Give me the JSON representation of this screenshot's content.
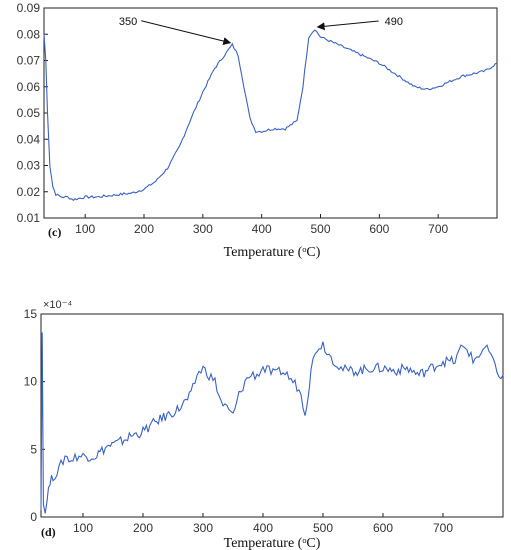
{
  "chart_data": [
    {
      "type": "line",
      "panel_label": "(c)",
      "xlabel": "Temperature (ᵒC)",
      "ylabel": "",
      "xlim": [
        30,
        800
      ],
      "ylim": [
        0.01,
        0.09
      ],
      "xticks": [
        100,
        200,
        300,
        400,
        500,
        600,
        700
      ],
      "yticks": [
        "0.01",
        "0.02",
        "0.03",
        "0.04",
        "0.05",
        "0.06",
        "0.07",
        "0.08",
        "0.09"
      ],
      "grid": false,
      "color": "#3a62c4",
      "series": [
        {
          "x": [
            30,
            33,
            36,
            40,
            45,
            50,
            60,
            70,
            80,
            100,
            120,
            140,
            160,
            180,
            200,
            220,
            240,
            260,
            280,
            300,
            320,
            340,
            350,
            360,
            370,
            380,
            390,
            400,
            420,
            440,
            460,
            470,
            480,
            490,
            500,
            520,
            540,
            560,
            580,
            600,
            620,
            640,
            660,
            680,
            700,
            720,
            740,
            760,
            780,
            800
          ],
          "y": [
            0.08,
            0.07,
            0.05,
            0.03,
            0.022,
            0.019,
            0.018,
            0.018,
            0.017,
            0.018,
            0.018,
            0.0185,
            0.019,
            0.0195,
            0.021,
            0.024,
            0.029,
            0.037,
            0.048,
            0.058,
            0.067,
            0.073,
            0.076,
            0.072,
            0.06,
            0.048,
            0.043,
            0.043,
            0.044,
            0.044,
            0.047,
            0.06,
            0.079,
            0.082,
            0.079,
            0.077,
            0.075,
            0.073,
            0.071,
            0.069,
            0.066,
            0.063,
            0.06,
            0.059,
            0.06,
            0.062,
            0.064,
            0.065,
            0.066,
            0.069
          ]
        }
      ],
      "annotations": [
        {
          "text": "350",
          "x": 350,
          "y": 0.076
        },
        {
          "text": "490",
          "x": 490,
          "y": 0.082
        }
      ]
    },
    {
      "type": "line",
      "panel_label": "(d)",
      "xlabel": "Temperature (ᵒC)",
      "ylabel": "",
      "exponent": "×10⁻⁴",
      "xlim": [
        30,
        800
      ],
      "ylim": [
        0,
        15
      ],
      "xticks": [
        100,
        200,
        300,
        400,
        500,
        600,
        700
      ],
      "yticks": [
        "0",
        "5",
        "10",
        "15"
      ],
      "grid": false,
      "color": "#3a62c4",
      "series": [
        {
          "x": [
            30,
            32,
            34,
            37,
            40,
            45,
            50,
            60,
            70,
            80,
            90,
            100,
            120,
            140,
            160,
            180,
            200,
            220,
            240,
            260,
            280,
            290,
            300,
            310,
            320,
            330,
            340,
            350,
            360,
            370,
            380,
            390,
            400,
            410,
            420,
            430,
            440,
            450,
            460,
            470,
            475,
            480,
            490,
            500,
            510,
            520,
            530,
            540,
            560,
            580,
            600,
            620,
            640,
            660,
            680,
            700,
            720,
            730,
            740,
            750,
            760,
            770,
            780,
            790,
            800
          ],
          "y": [
            0.5,
            14,
            1,
            0.3,
            1.5,
            2.5,
            3,
            3.5,
            4.5,
            4.2,
            4.5,
            4.5,
            4.5,
            5.2,
            5.5,
            6,
            6.3,
            7,
            7.5,
            8,
            9,
            10.5,
            11,
            10.5,
            10,
            8.5,
            8,
            7.5,
            9,
            10,
            10.5,
            10.5,
            11,
            10.8,
            10.5,
            10.8,
            10.5,
            10,
            9.5,
            7.8,
            9,
            11,
            12.5,
            12.8,
            12,
            11.5,
            11,
            10.8,
            10.8,
            11,
            11,
            10.8,
            11,
            10.5,
            11,
            11.5,
            11.5,
            12.5,
            12.5,
            11.5,
            12,
            12.5,
            12,
            10.5,
            10.5
          ]
        }
      ]
    }
  ]
}
